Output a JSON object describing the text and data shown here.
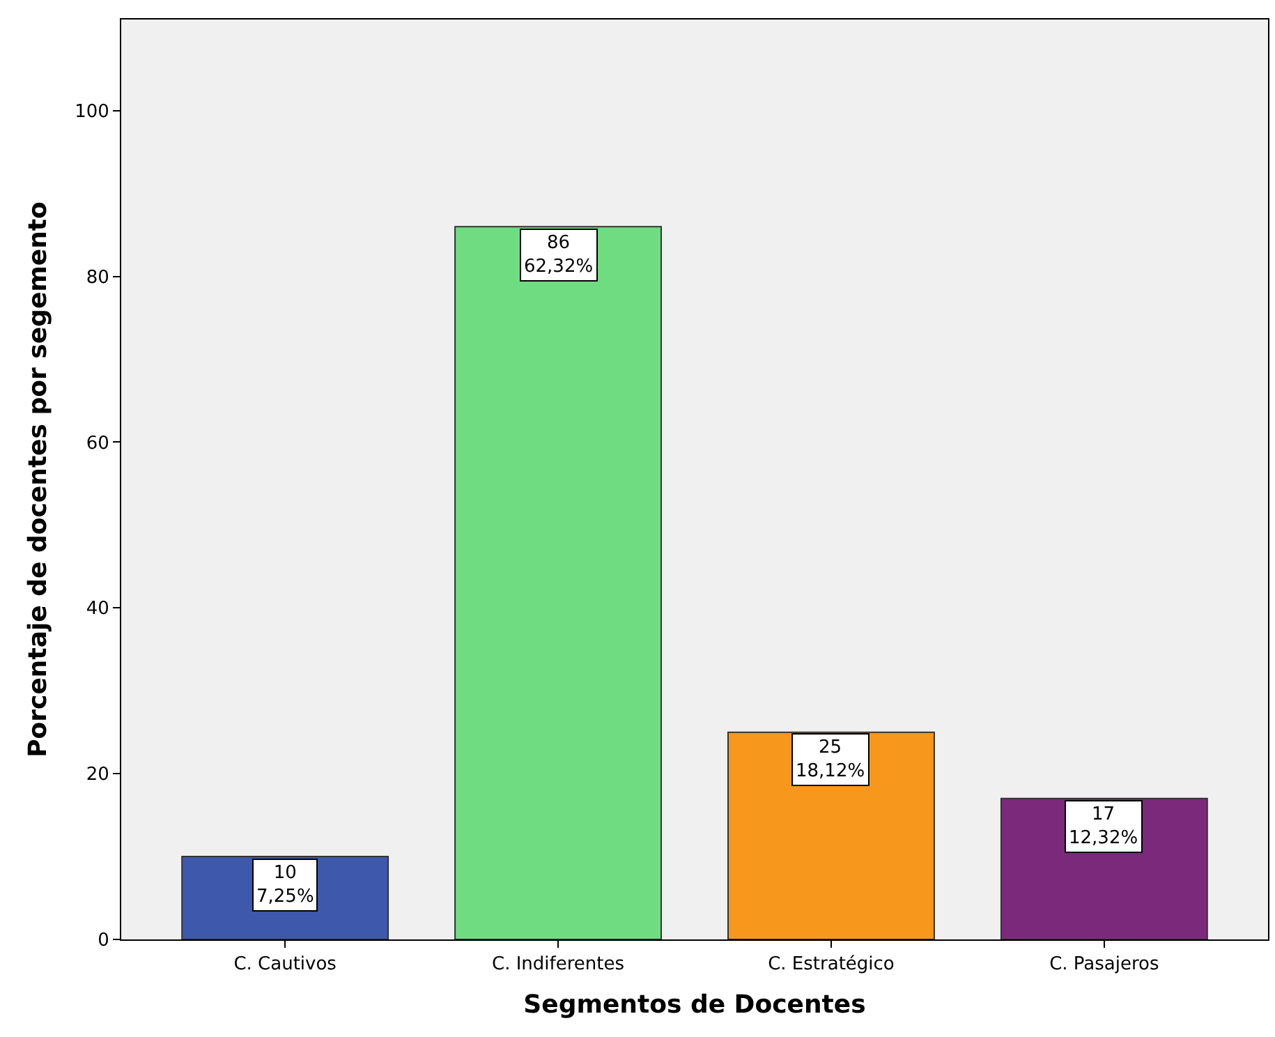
{
  "chart_data": {
    "type": "bar",
    "xlabel": "Segmentos de Docentes",
    "ylabel": "Porcentaje de docentes por segemento",
    "categories": [
      "C. Cautivos",
      "C. Indiferentes",
      "C. Estratégico",
      "C. Pasajeros"
    ],
    "values": [
      10,
      86,
      25,
      17
    ],
    "colors": [
      "#3e58ac",
      "#70dc82",
      "#f7981d",
      "#7b2a7b"
    ],
    "value_labels": [
      "10\n7,25%",
      "86\n62,32%",
      "25\n18,12%",
      "17\n12,32%"
    ],
    "ylim": [
      0,
      111
    ],
    "yticks": [
      0,
      20,
      40,
      60,
      80,
      100
    ],
    "grid": false
  }
}
